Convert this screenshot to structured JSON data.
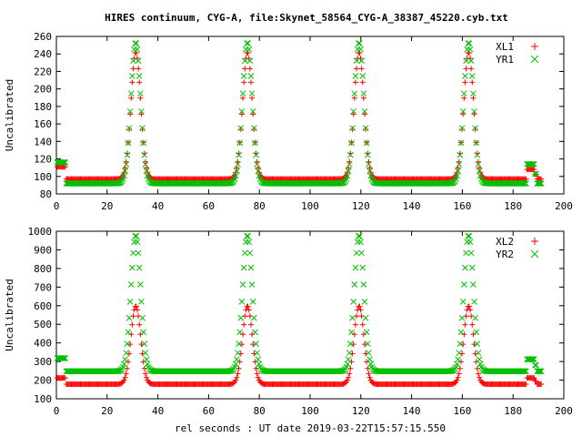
{
  "title": "HIRES continuum, CYG-A, file:Skynet_58564_CYG-A_38387_45220.cyb.txt",
  "xlabel": "rel seconds : UT date 2019-03-22T15:57:15.550",
  "colors": {
    "red": "#ff0000",
    "green": "#00c000"
  },
  "chart_data": [
    {
      "type": "scatter",
      "ylabel": "Uncalibrated",
      "xlim": [
        0,
        200
      ],
      "ylim": [
        80,
        260
      ],
      "x_ticks": [
        0,
        20,
        40,
        60,
        80,
        100,
        120,
        140,
        160,
        180,
        200
      ],
      "y_ticks": [
        80,
        100,
        120,
        140,
        160,
        180,
        200,
        220,
        240,
        260
      ],
      "legend_position": "top-right",
      "grid": false,
      "peak_times": [
        31.3,
        75.3,
        119.3,
        162.5
      ],
      "series": [
        {
          "name": "XL1",
          "marker": "+",
          "color": "#ff0000",
          "baseline": 97,
          "peak": 242,
          "start": 111,
          "gap_level": 108
        },
        {
          "name": "YR1",
          "marker": "x",
          "color": "#00c000",
          "baseline": 92,
          "peak": 253,
          "start": 116,
          "gap_level": 114
        }
      ]
    },
    {
      "type": "scatter",
      "ylabel": "Uncalibrated",
      "xlim": [
        0,
        200
      ],
      "ylim": [
        100,
        1000
      ],
      "x_ticks": [
        0,
        20,
        40,
        60,
        80,
        100,
        120,
        140,
        160,
        180,
        200
      ],
      "y_ticks": [
        100,
        200,
        300,
        400,
        500,
        600,
        700,
        800,
        900,
        1000
      ],
      "legend_position": "top-right",
      "grid": false,
      "peak_times": [
        31.3,
        75.3,
        119.3,
        162.5
      ],
      "series": [
        {
          "name": "XL2",
          "marker": "+",
          "color": "#ff0000",
          "baseline": 178,
          "peak": 598,
          "start": 212,
          "gap_level": 212
        },
        {
          "name": "YR2",
          "marker": "x",
          "color": "#00c000",
          "baseline": 248,
          "peak": 978,
          "start": 318,
          "gap_level": 312
        }
      ]
    }
  ]
}
